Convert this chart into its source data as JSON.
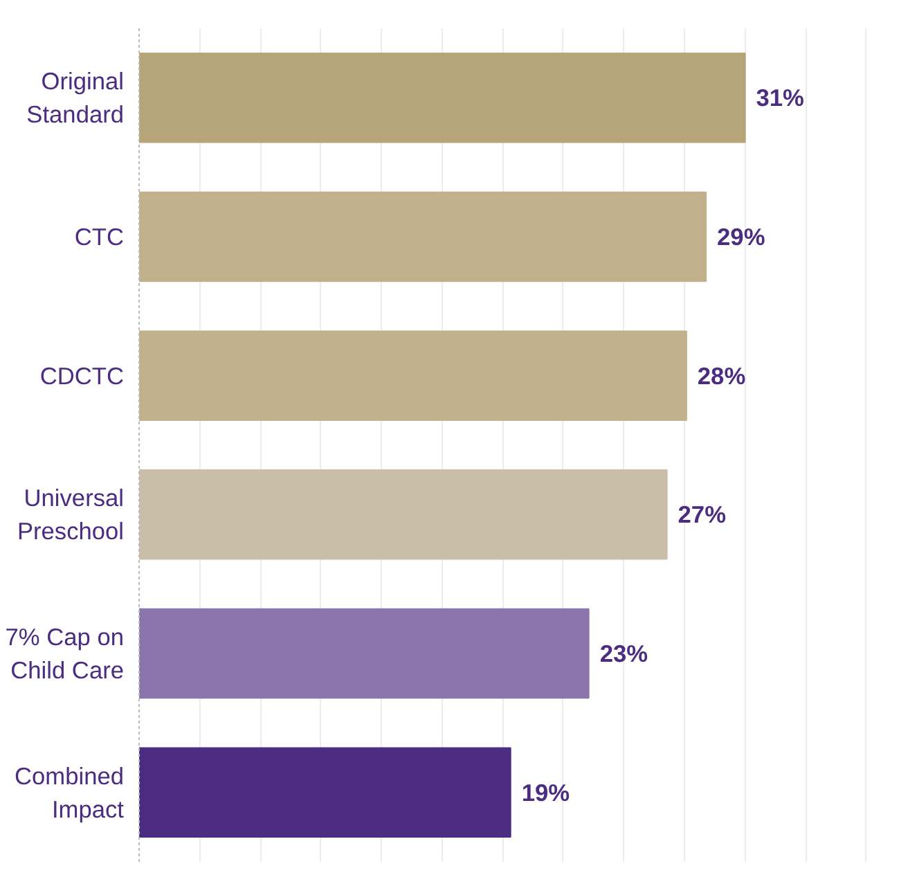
{
  "chart_data": {
    "type": "bar",
    "orientation": "horizontal",
    "categories": [
      "Original Standard",
      "CTC",
      "CDCTC",
      "Universal Preschool",
      "7% Cap on Child Care",
      "Combined Impact"
    ],
    "values": [
      31,
      29,
      28,
      27,
      23,
      19
    ],
    "value_labels": [
      "31%",
      "29%",
      "28%",
      "27%",
      "23%",
      "19%"
    ],
    "colors": [
      "#b5a578",
      "#c0b08c",
      "#c0b08c",
      "#c9bea7",
      "#8a76ac",
      "#4b2c80"
    ],
    "grid": "x",
    "tick_labels": "y"
  }
}
